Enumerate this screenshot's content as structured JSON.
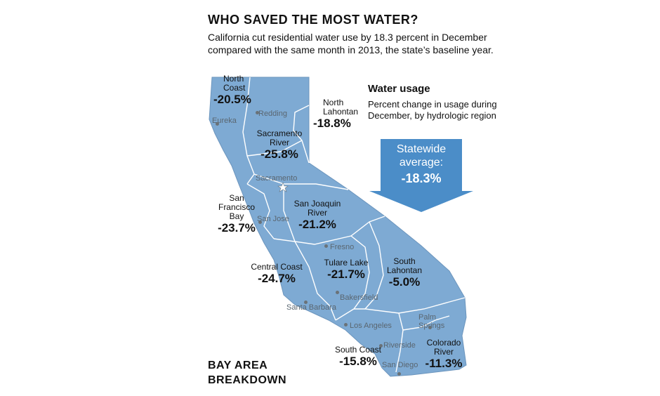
{
  "header": {
    "title": "WHO SAVED THE MOST WATER?",
    "subtitle": "California cut residential water use by 18.3 percent in December compared with the same month in 2013, the state’s baseline year."
  },
  "legend": {
    "title": "Water usage",
    "description": "Percent change in usage during December, by hydrologic region"
  },
  "statewide": {
    "line1": "Statewide",
    "line2": "average:",
    "value": "-18.3%"
  },
  "regions": [
    {
      "name": "North\nCoast",
      "value": "-20.5%"
    },
    {
      "name": "North\nLahontan",
      "value": "-18.8%"
    },
    {
      "name": "Sacramento\nRiver",
      "value": "-25.8%"
    },
    {
      "name": "San\nFrancisco\nBay",
      "value": "-23.7%"
    },
    {
      "name": "San Joaquin\nRiver",
      "value": "-21.2%"
    },
    {
      "name": "Central Coast",
      "value": "-24.7%"
    },
    {
      "name": "Tulare Lake",
      "value": "-21.7%"
    },
    {
      "name": "South\nLahontan",
      "value": "-5.0%"
    },
    {
      "name": "South Coast",
      "value": "-15.8%"
    },
    {
      "name": "Colorado\nRiver",
      "value": "-11.3%"
    }
  ],
  "cities": {
    "eureka": "Eureka",
    "redding": "Redding",
    "sacramento": "Sacramento",
    "san_jose": "San Jose",
    "fresno": "Fresno",
    "bakersfield": "Bakersfield",
    "santa_barbara": "Santa Barbara",
    "los_angeles": "Los Angeles",
    "palm_springs": "Palm\nSprings",
    "riverside": "Riverside",
    "san_diego": "San Diego"
  },
  "footer": {
    "label_line1": "BAY AREA",
    "label_line2": "BREAKDOWN"
  },
  "colors": {
    "state_fill": "#7eaad3",
    "region_border": "#ffffff",
    "arrow": "#4b8dc8"
  }
}
